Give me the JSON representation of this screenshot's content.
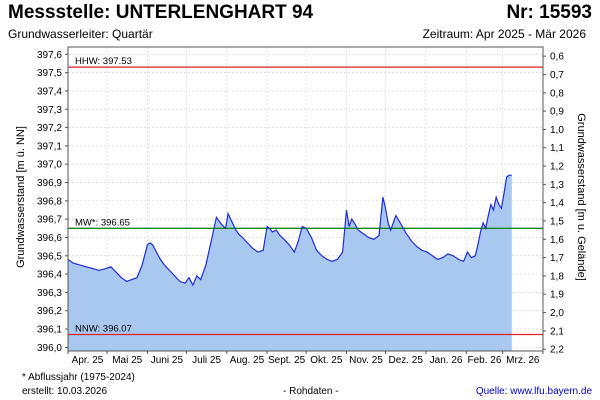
{
  "header": {
    "title": "Messstelle: UNTERLENGHART 94",
    "nr": "Nr: 15593",
    "subtitle": "Grundwasserleiter: Quartär",
    "period": "Zeitraum: Apr 2025 - Mär 2026"
  },
  "footer": {
    "footnote": "* Abflussjahr (1975-2024)",
    "created": "erstellt:  10.03.2026",
    "rawdata": "- Rohdaten -",
    "source": "Quelle: www.lfu.bayern.de"
  },
  "colors": {
    "line": "#1f2bd6",
    "fill": "#a9c8f0",
    "hhw": "#dd2222",
    "nnw": "#dd2222",
    "mw": "#118811",
    "grid": "#d0d0d0"
  },
  "chart_data": {
    "type": "area",
    "ylabel": "Grundwasserstand [m ü. NN]",
    "y2label": "Grundwasserstand [m u. Gelände]",
    "ylim": [
      395.98,
      397.64
    ],
    "y_ticks": [
      396.0,
      396.1,
      396.2,
      396.3,
      396.4,
      396.5,
      396.6,
      396.7,
      396.8,
      396.9,
      397.0,
      397.1,
      397.2,
      397.3,
      397.4,
      397.5,
      397.6
    ],
    "y_tick_labels": [
      "396,0",
      "396,1",
      "396,2",
      "396,3",
      "396,4",
      "396,5",
      "396,6",
      "396,7",
      "396,8",
      "396,9",
      "397,0",
      "397,1",
      "397,2",
      "397,3",
      "397,4",
      "397,5",
      "397,6"
    ],
    "y2_reference_level": 398.19,
    "y2_ticks": [
      0.6,
      0.7,
      0.8,
      0.9,
      1.0,
      1.1,
      1.2,
      1.3,
      1.4,
      1.5,
      1.6,
      1.7,
      1.8,
      1.9,
      2.0,
      2.1,
      2.2
    ],
    "y2_tick_labels": [
      "0,6",
      "0,7",
      "0,8",
      "0,9",
      "1,0",
      "1,1",
      "1,2",
      "1,3",
      "1,4",
      "1,5",
      "1,6",
      "1,7",
      "1,8",
      "1,9",
      "2,0",
      "2,1",
      "2,2"
    ],
    "x_tick_labels": [
      "Apr. 25",
      "Mai 25",
      "Juni 25",
      "Juli 25",
      "Aug. 25",
      "Sept. 25",
      "Okt. 25",
      "Nov. 25",
      "Dez. 25",
      "Jan. 26",
      "Feb. 26",
      "Mrz. 26"
    ],
    "grid": true,
    "reference_lines": [
      {
        "label": "HHW: 397.53",
        "value": 397.53,
        "color_key": "hhw"
      },
      {
        "label": "MW*: 396.65",
        "value": 396.65,
        "color_key": "mw"
      },
      {
        "label": "NNW: 396.07",
        "value": 396.07,
        "color_key": "nnw"
      }
    ],
    "x": [
      "2025-04-01",
      "2025-04-05",
      "2025-04-10",
      "2025-04-15",
      "2025-04-20",
      "2025-04-25",
      "2025-04-30",
      "2025-05-04",
      "2025-05-08",
      "2025-05-12",
      "2025-05-16",
      "2025-05-20",
      "2025-05-24",
      "2025-05-28",
      "2025-06-01",
      "2025-06-03",
      "2025-06-05",
      "2025-06-08",
      "2025-06-11",
      "2025-06-14",
      "2025-06-18",
      "2025-06-22",
      "2025-06-26",
      "2025-06-30",
      "2025-07-03",
      "2025-07-06",
      "2025-07-09",
      "2025-07-12",
      "2025-07-16",
      "2025-07-20",
      "2025-07-24",
      "2025-07-28",
      "2025-07-31",
      "2025-08-02",
      "2025-08-04",
      "2025-08-06",
      "2025-08-08",
      "2025-08-10",
      "2025-08-13",
      "2025-08-17",
      "2025-08-21",
      "2025-08-25",
      "2025-08-29",
      "2025-09-01",
      "2025-09-03",
      "2025-09-05",
      "2025-09-08",
      "2025-09-11",
      "2025-09-14",
      "2025-09-18",
      "2025-09-22",
      "2025-09-25",
      "2025-09-28",
      "2025-10-01",
      "2025-10-05",
      "2025-10-09",
      "2025-10-13",
      "2025-10-17",
      "2025-10-21",
      "2025-10-25",
      "2025-10-29",
      "2025-11-01",
      "2025-11-03",
      "2025-11-05",
      "2025-11-07",
      "2025-11-10",
      "2025-11-14",
      "2025-11-18",
      "2025-11-22",
      "2025-11-26",
      "2025-11-29",
      "2025-12-01",
      "2025-12-03",
      "2025-12-05",
      "2025-12-09",
      "2025-12-13",
      "2025-12-17",
      "2025-12-21",
      "2025-12-25",
      "2025-12-29",
      "2026-01-02",
      "2026-01-06",
      "2026-01-10",
      "2026-01-14",
      "2026-01-18",
      "2026-01-22",
      "2026-01-26",
      "2026-01-30",
      "2026-02-02",
      "2026-02-05",
      "2026-02-08",
      "2026-02-10",
      "2026-02-12",
      "2026-02-14",
      "2026-02-16",
      "2026-02-18",
      "2026-02-20",
      "2026-02-22",
      "2026-02-24",
      "2026-02-26",
      "2026-02-28",
      "2026-03-02",
      "2026-03-04",
      "2026-03-06",
      "2026-03-08"
    ],
    "y": [
      396.48,
      396.46,
      396.45,
      396.44,
      396.43,
      396.42,
      396.43,
      396.44,
      396.41,
      396.38,
      396.36,
      396.37,
      396.38,
      396.45,
      396.56,
      396.57,
      396.56,
      396.52,
      396.48,
      396.45,
      396.42,
      396.39,
      396.36,
      396.35,
      396.38,
      396.34,
      396.39,
      396.37,
      396.45,
      396.58,
      396.71,
      396.67,
      396.65,
      396.73,
      396.7,
      396.67,
      396.64,
      396.62,
      396.6,
      396.57,
      396.54,
      396.52,
      396.53,
      396.66,
      396.65,
      396.63,
      396.64,
      396.61,
      396.59,
      396.56,
      396.52,
      396.58,
      396.66,
      396.65,
      396.6,
      396.53,
      396.5,
      396.48,
      396.47,
      396.48,
      396.52,
      396.75,
      396.66,
      396.7,
      396.68,
      396.64,
      396.62,
      396.6,
      396.59,
      396.61,
      396.82,
      396.76,
      396.68,
      396.64,
      396.72,
      396.67,
      396.62,
      396.58,
      396.55,
      396.53,
      396.52,
      396.5,
      396.48,
      396.49,
      396.51,
      396.5,
      396.48,
      396.47,
      396.52,
      396.49,
      396.5,
      396.56,
      396.63,
      396.68,
      396.65,
      396.72,
      396.78,
      396.75,
      396.82,
      396.78,
      396.76,
      396.84,
      396.93,
      396.94,
      396.94
    ]
  }
}
